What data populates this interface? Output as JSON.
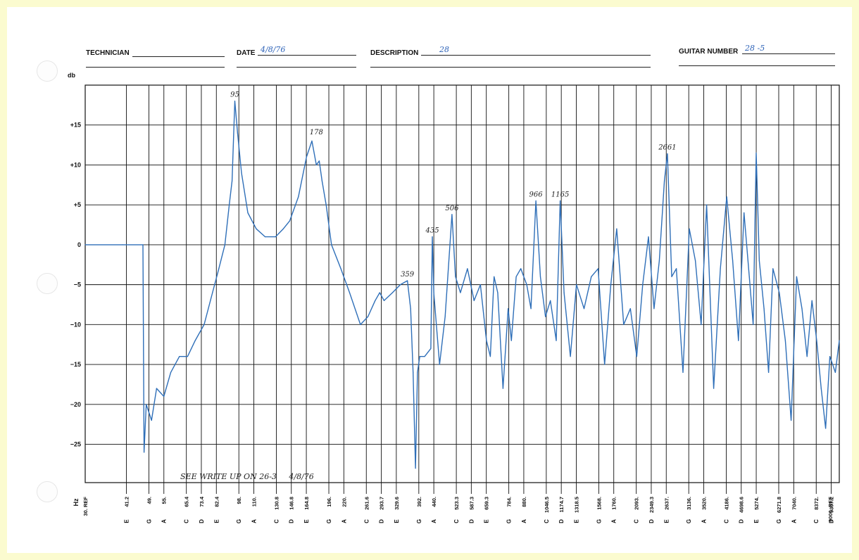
{
  "form": {
    "technician_label": "TECHNICIAN",
    "technician_value": "",
    "date_label": "DATE",
    "date_value": "4/8/76",
    "description_label": "DESCRIPTION",
    "description_value": "28",
    "guitar_number_label": "GUITAR NUMBER",
    "guitar_number_value": "28 -5",
    "note": "SEE WRITE UP ON 26-3     4/8/76"
  },
  "colors": {
    "trace": "#2f6fb8",
    "grid": "#111111",
    "paper": "#ffffff",
    "border": "#fbfbcf",
    "handwriting": "#2e63b8"
  },
  "chart_data": {
    "type": "line",
    "ylabel": "db",
    "xlabel": "Hz",
    "ylim": [
      -30,
      20
    ],
    "y_ticks": [
      15,
      10,
      5,
      0,
      -5,
      -10,
      -15,
      -20,
      -25
    ],
    "y_tick_labels": [
      "+15",
      "+10",
      "+5",
      "0",
      "−5",
      "−10",
      "−15",
      "−20",
      "−25"
    ],
    "grid": true,
    "x_scale": "log",
    "xlim": [
      30,
      10000
    ],
    "x_ticks": [
      {
        "hz": 41.2,
        "freq": "41.2",
        "note": "E"
      },
      {
        "hz": 49,
        "freq": "49.",
        "note": "G"
      },
      {
        "hz": 55,
        "freq": "55.",
        "note": "A"
      },
      {
        "hz": 65.4,
        "freq": "65.4",
        "note": "C"
      },
      {
        "hz": 73.4,
        "freq": "73.4",
        "note": "D"
      },
      {
        "hz": 82.4,
        "freq": "82.4",
        "note": "E"
      },
      {
        "hz": 98,
        "freq": "98.",
        "note": "G"
      },
      {
        "hz": 110,
        "freq": "110.",
        "note": "A"
      },
      {
        "hz": 130.8,
        "freq": "130.8",
        "note": "C"
      },
      {
        "hz": 146.8,
        "freq": "146.8",
        "note": "D"
      },
      {
        "hz": 164.8,
        "freq": "164.8",
        "note": "E"
      },
      {
        "hz": 196,
        "freq": "196.",
        "note": "G"
      },
      {
        "hz": 220,
        "freq": "220.",
        "note": "A"
      },
      {
        "hz": 261.6,
        "freq": "261.6",
        "note": "C"
      },
      {
        "hz": 293.7,
        "freq": "293.7",
        "note": "D"
      },
      {
        "hz": 329.6,
        "freq": "329.6",
        "note": "E"
      },
      {
        "hz": 392,
        "freq": "392.",
        "note": "G"
      },
      {
        "hz": 440,
        "freq": "440.",
        "note": "A"
      },
      {
        "hz": 523.3,
        "freq": "523.3",
        "note": "C"
      },
      {
        "hz": 587.3,
        "freq": "587.3",
        "note": "D"
      },
      {
        "hz": 659.3,
        "freq": "659.3",
        "note": "E"
      },
      {
        "hz": 784,
        "freq": "784.",
        "note": "G"
      },
      {
        "hz": 880,
        "freq": "880.",
        "note": "A"
      },
      {
        "hz": 1046.5,
        "freq": "1046.5",
        "note": "C"
      },
      {
        "hz": 1174.7,
        "freq": "1174.7",
        "note": "D"
      },
      {
        "hz": 1318.5,
        "freq": "1318.5",
        "note": "E"
      },
      {
        "hz": 1568,
        "freq": "1568.",
        "note": "G"
      },
      {
        "hz": 1760,
        "freq": "1760.",
        "note": "A"
      },
      {
        "hz": 2093,
        "freq": "2093.",
        "note": "C"
      },
      {
        "hz": 2349.3,
        "freq": "2349.3",
        "note": "D"
      },
      {
        "hz": 2637,
        "freq": "2637.",
        "note": "E"
      },
      {
        "hz": 3136,
        "freq": "3136.",
        "note": "G"
      },
      {
        "hz": 3520,
        "freq": "3520.",
        "note": "A"
      },
      {
        "hz": 4186,
        "freq": "4186.",
        "note": "C"
      },
      {
        "hz": 4698.6,
        "freq": "4698.6",
        "note": "D"
      },
      {
        "hz": 5274,
        "freq": "5274.",
        "note": "E"
      },
      {
        "hz": 6271.8,
        "freq": "6271.8",
        "note": "G"
      },
      {
        "hz": 7040,
        "freq": "7040.",
        "note": "A"
      },
      {
        "hz": 8372,
        "freq": "8372.",
        "note": "C"
      },
      {
        "hz": 9397.2,
        "freq": "9397.2",
        "note": "D"
      }
    ],
    "x_edge_labels": {
      "left": "30. REF",
      "right": "9000. REF"
    },
    "annotations": [
      {
        "text": "95",
        "hz": 95,
        "db": 18
      },
      {
        "text": "178",
        "hz": 178,
        "db": 13.3
      },
      {
        "text": "359",
        "hz": 359,
        "db": -4.5
      },
      {
        "text": "435",
        "hz": 435,
        "db": 1
      },
      {
        "text": "506",
        "hz": 506,
        "db": 3.8
      },
      {
        "text": "966",
        "hz": 966,
        "db": 5.5
      },
      {
        "text": "1165",
        "hz": 1165,
        "db": 5.5
      },
      {
        "text": "2661",
        "hz": 2661,
        "db": 11.4
      }
    ],
    "series": [
      {
        "x": [
          30,
          40,
          46.8,
          47.2,
          48,
          50,
          52,
          55,
          58,
          62,
          66,
          70,
          75,
          80,
          84,
          88,
          91,
          93,
          95,
          97,
          100,
          105,
          112,
          120,
          130,
          138,
          145,
          155,
          165,
          172,
          178,
          182,
          186,
          192,
          200,
          215,
          230,
          250,
          265,
          280,
          290,
          300,
          320,
          340,
          359,
          368,
          375,
          382,
          388,
          395,
          410,
          430,
          435,
          440,
          460,
          480,
          506,
          520,
          540,
          570,
          600,
          630,
          660,
          680,
          700,
          720,
          750,
          780,
          800,
          830,
          860,
          900,
          930,
          966,
          1000,
          1040,
          1080,
          1130,
          1165,
          1200,
          1260,
          1320,
          1400,
          1480,
          1560,
          1640,
          1720,
          1800,
          1900,
          2000,
          2100,
          2200,
          2300,
          2400,
          2500,
          2600,
          2661,
          2750,
          2850,
          3000,
          3150,
          3300,
          3450,
          3600,
          3800,
          4000,
          4200,
          4400,
          4600,
          4800,
          5000,
          5150,
          5274,
          5400,
          5600,
          5800,
          6000,
          6300,
          6600,
          6900,
          7200,
          7500,
          7800,
          8100,
          8400,
          8700,
          9000,
          9300,
          9700,
          10000
        ],
        "y": [
          0,
          0,
          0,
          -26,
          -20,
          -22,
          -18,
          -19,
          -16,
          -14,
          -14,
          -12,
          -10,
          -6,
          -3,
          0,
          5,
          8,
          18,
          14,
          9,
          4,
          2,
          1,
          1,
          2,
          3,
          6,
          11,
          13,
          10,
          10.5,
          8,
          5,
          0,
          -3,
          -6,
          -10,
          -9,
          -7,
          -6,
          -7,
          -6,
          -5,
          -4.5,
          -8,
          -16,
          -28,
          -16,
          -14,
          -14,
          -13,
          1,
          -6,
          -15,
          -9,
          3.8,
          -4,
          -6,
          -3,
          -7,
          -5,
          -12,
          -14,
          -4,
          -6,
          -18,
          -8,
          -12,
          -4,
          -3,
          -5,
          -8,
          5.5,
          -4,
          -9,
          -7,
          -12,
          5.5,
          -6,
          -14,
          -5,
          -8,
          -4,
          -3,
          -15,
          -5,
          2,
          -10,
          -8,
          -14,
          -5,
          1,
          -8,
          -2,
          8,
          11.4,
          -4,
          -3,
          -16,
          2,
          -2,
          -10,
          5,
          -18,
          -3,
          6,
          -2,
          -12,
          4,
          -4,
          -10,
          11.5,
          -2,
          -8,
          -16,
          -3,
          -6,
          -12,
          -22,
          -4,
          -8,
          -14,
          -7,
          -12,
          -18,
          -23,
          -14,
          -16,
          -12
        ]
      }
    ]
  }
}
